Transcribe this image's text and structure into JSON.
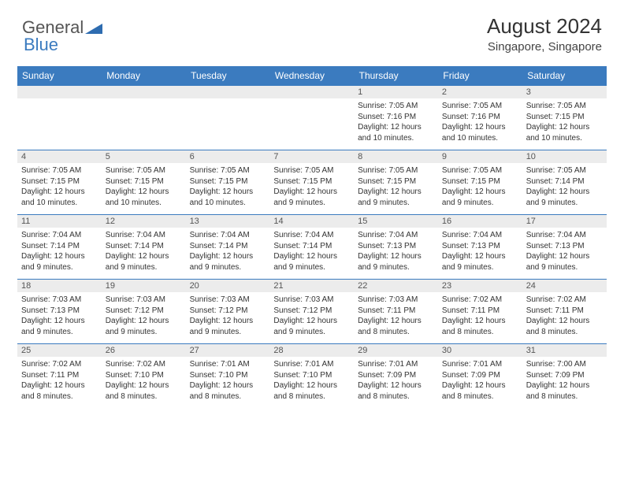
{
  "logo": {
    "general": "General",
    "blue": "Blue"
  },
  "title": "August 2024",
  "location": "Singapore, Singapore",
  "colors": {
    "header_bg": "#3b7bbf",
    "header_text": "#ffffff",
    "daynum_bg": "#ececec",
    "border": "#3b7bbf",
    "text": "#333333"
  },
  "typography": {
    "title_fontsize": 26,
    "location_fontsize": 15,
    "dayheader_fontsize": 12,
    "body_fontsize": 10
  },
  "weekdays": [
    "Sunday",
    "Monday",
    "Tuesday",
    "Wednesday",
    "Thursday",
    "Friday",
    "Saturday"
  ],
  "weeks": [
    [
      null,
      null,
      null,
      null,
      {
        "n": "1",
        "sr": "7:05 AM",
        "ss": "7:16 PM",
        "dl": "12 hours and 10 minutes."
      },
      {
        "n": "2",
        "sr": "7:05 AM",
        "ss": "7:16 PM",
        "dl": "12 hours and 10 minutes."
      },
      {
        "n": "3",
        "sr": "7:05 AM",
        "ss": "7:15 PM",
        "dl": "12 hours and 10 minutes."
      }
    ],
    [
      {
        "n": "4",
        "sr": "7:05 AM",
        "ss": "7:15 PM",
        "dl": "12 hours and 10 minutes."
      },
      {
        "n": "5",
        "sr": "7:05 AM",
        "ss": "7:15 PM",
        "dl": "12 hours and 10 minutes."
      },
      {
        "n": "6",
        "sr": "7:05 AM",
        "ss": "7:15 PM",
        "dl": "12 hours and 10 minutes."
      },
      {
        "n": "7",
        "sr": "7:05 AM",
        "ss": "7:15 PM",
        "dl": "12 hours and 9 minutes."
      },
      {
        "n": "8",
        "sr": "7:05 AM",
        "ss": "7:15 PM",
        "dl": "12 hours and 9 minutes."
      },
      {
        "n": "9",
        "sr": "7:05 AM",
        "ss": "7:15 PM",
        "dl": "12 hours and 9 minutes."
      },
      {
        "n": "10",
        "sr": "7:05 AM",
        "ss": "7:14 PM",
        "dl": "12 hours and 9 minutes."
      }
    ],
    [
      {
        "n": "11",
        "sr": "7:04 AM",
        "ss": "7:14 PM",
        "dl": "12 hours and 9 minutes."
      },
      {
        "n": "12",
        "sr": "7:04 AM",
        "ss": "7:14 PM",
        "dl": "12 hours and 9 minutes."
      },
      {
        "n": "13",
        "sr": "7:04 AM",
        "ss": "7:14 PM",
        "dl": "12 hours and 9 minutes."
      },
      {
        "n": "14",
        "sr": "7:04 AM",
        "ss": "7:14 PM",
        "dl": "12 hours and 9 minutes."
      },
      {
        "n": "15",
        "sr": "7:04 AM",
        "ss": "7:13 PM",
        "dl": "12 hours and 9 minutes."
      },
      {
        "n": "16",
        "sr": "7:04 AM",
        "ss": "7:13 PM",
        "dl": "12 hours and 9 minutes."
      },
      {
        "n": "17",
        "sr": "7:04 AM",
        "ss": "7:13 PM",
        "dl": "12 hours and 9 minutes."
      }
    ],
    [
      {
        "n": "18",
        "sr": "7:03 AM",
        "ss": "7:13 PM",
        "dl": "12 hours and 9 minutes."
      },
      {
        "n": "19",
        "sr": "7:03 AM",
        "ss": "7:12 PM",
        "dl": "12 hours and 9 minutes."
      },
      {
        "n": "20",
        "sr": "7:03 AM",
        "ss": "7:12 PM",
        "dl": "12 hours and 9 minutes."
      },
      {
        "n": "21",
        "sr": "7:03 AM",
        "ss": "7:12 PM",
        "dl": "12 hours and 9 minutes."
      },
      {
        "n": "22",
        "sr": "7:03 AM",
        "ss": "7:11 PM",
        "dl": "12 hours and 8 minutes."
      },
      {
        "n": "23",
        "sr": "7:02 AM",
        "ss": "7:11 PM",
        "dl": "12 hours and 8 minutes."
      },
      {
        "n": "24",
        "sr": "7:02 AM",
        "ss": "7:11 PM",
        "dl": "12 hours and 8 minutes."
      }
    ],
    [
      {
        "n": "25",
        "sr": "7:02 AM",
        "ss": "7:11 PM",
        "dl": "12 hours and 8 minutes."
      },
      {
        "n": "26",
        "sr": "7:02 AM",
        "ss": "7:10 PM",
        "dl": "12 hours and 8 minutes."
      },
      {
        "n": "27",
        "sr": "7:01 AM",
        "ss": "7:10 PM",
        "dl": "12 hours and 8 minutes."
      },
      {
        "n": "28",
        "sr": "7:01 AM",
        "ss": "7:10 PM",
        "dl": "12 hours and 8 minutes."
      },
      {
        "n": "29",
        "sr": "7:01 AM",
        "ss": "7:09 PM",
        "dl": "12 hours and 8 minutes."
      },
      {
        "n": "30",
        "sr": "7:01 AM",
        "ss": "7:09 PM",
        "dl": "12 hours and 8 minutes."
      },
      {
        "n": "31",
        "sr": "7:00 AM",
        "ss": "7:09 PM",
        "dl": "12 hours and 8 minutes."
      }
    ]
  ],
  "labels": {
    "sunrise": "Sunrise:",
    "sunset": "Sunset:",
    "daylight": "Daylight:"
  }
}
